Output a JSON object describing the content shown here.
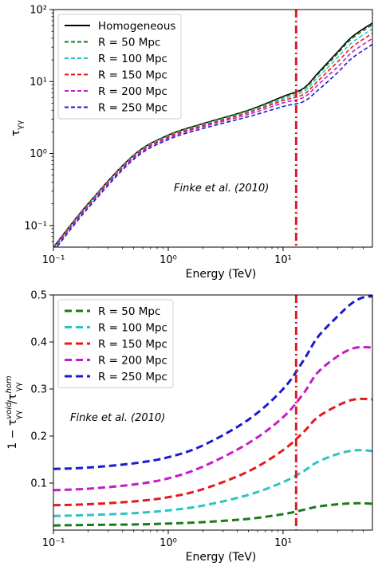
{
  "chart_data": [
    {
      "type": "line",
      "xlabel": "Energy (TeV)",
      "ylabel": "τγγ",
      "xscale": "log",
      "yscale": "log",
      "xlim": [
        0.1,
        60
      ],
      "ylim": [
        0.05,
        100
      ],
      "x_ticks": [
        {
          "value": 0.1,
          "label": "10⁻¹"
        },
        {
          "value": 1,
          "label": "10⁰"
        },
        {
          "value": 10,
          "label": "10¹"
        }
      ],
      "y_ticks": [
        {
          "value": 0.1,
          "label": "10⁻¹"
        },
        {
          "value": 1,
          "label": "10⁰"
        },
        {
          "value": 10,
          "label": "10¹"
        },
        {
          "value": 100,
          "label": "10²"
        }
      ],
      "legend_position": "top-left",
      "annotation": "Finke et al. (2010)",
      "vline": {
        "x": 13,
        "color": "#e31a1c",
        "style": "dash-dot"
      },
      "series": [
        {
          "name": "Homogeneous",
          "color": "#000000",
          "style": "solid",
          "x": [
            0.1,
            0.2,
            0.5,
            1,
            2,
            5,
            10,
            15,
            20,
            30,
            40,
            60
          ],
          "y": [
            0.05,
            0.2,
            0.95,
            1.8,
            2.6,
            4.0,
            6.2,
            8.0,
            13.0,
            26.0,
            42.0,
            65.0
          ]
        },
        {
          "name": "R = 50 Mpc",
          "color": "#1a7a1a",
          "style": "dashed",
          "x": [
            0.1,
            0.2,
            0.5,
            1,
            2,
            5,
            10,
            15,
            20,
            30,
            40,
            60
          ],
          "y": [
            0.0495,
            0.198,
            0.94,
            1.78,
            2.57,
            3.95,
            6.05,
            7.75,
            12.4,
            24.6,
            39.7,
            61.3
          ]
        },
        {
          "name": "R = 100 Mpc",
          "color": "#2ec4c4",
          "style": "dashed",
          "x": [
            0.1,
            0.2,
            0.5,
            1,
            2,
            5,
            10,
            15,
            20,
            30,
            40,
            60
          ],
          "y": [
            0.0485,
            0.194,
            0.92,
            1.74,
            2.5,
            3.82,
            5.75,
            7.2,
            11.3,
            21.7,
            34.9,
            54.0
          ]
        },
        {
          "name": "R = 150 Mpc",
          "color": "#e31a1c",
          "style": "dashed",
          "x": [
            0.1,
            0.2,
            0.5,
            1,
            2,
            5,
            10,
            15,
            20,
            30,
            40,
            60
          ],
          "y": [
            0.0475,
            0.19,
            0.9,
            1.7,
            2.44,
            3.7,
            5.45,
            6.6,
            10.1,
            18.9,
            30.3,
            46.8
          ]
        },
        {
          "name": "R = 200 Mpc",
          "color": "#c51bc5",
          "style": "dashed",
          "x": [
            0.1,
            0.2,
            0.5,
            1,
            2,
            5,
            10,
            15,
            20,
            30,
            40,
            60
          ],
          "y": [
            0.046,
            0.183,
            0.87,
            1.64,
            2.35,
            3.5,
            5.05,
            6.0,
            8.9,
            16.1,
            25.6,
            39.7
          ]
        },
        {
          "name": "R = 250 Mpc",
          "color": "#1a1ad1",
          "style": "dashed",
          "x": [
            0.1,
            0.2,
            0.5,
            1,
            2,
            5,
            10,
            15,
            20,
            30,
            40,
            60
          ],
          "y": [
            0.0435,
            0.174,
            0.83,
            1.56,
            2.22,
            3.25,
            4.5,
            5.25,
            7.5,
            13.4,
            21.2,
            32.8
          ]
        }
      ]
    },
    {
      "type": "line",
      "xlabel": "Energy (TeV)",
      "ylabel": "1 − τγγvoid/τγγhom",
      "xscale": "log",
      "yscale": "linear",
      "xlim": [
        0.1,
        60
      ],
      "ylim": [
        0,
        0.5
      ],
      "x_ticks": [
        {
          "value": 0.1,
          "label": "10⁻¹"
        },
        {
          "value": 1,
          "label": "10⁰"
        },
        {
          "value": 10,
          "label": "10¹"
        }
      ],
      "y_ticks": [
        {
          "value": 0.1,
          "label": "0.1"
        },
        {
          "value": 0.2,
          "label": "0.2"
        },
        {
          "value": 0.3,
          "label": "0.3"
        },
        {
          "value": 0.4,
          "label": "0.4"
        },
        {
          "value": 0.5,
          "label": "0.5"
        }
      ],
      "legend_position": "top-left",
      "annotation": "Finke et al. (2010)",
      "vline": {
        "x": 13,
        "color": "#e31a1c",
        "style": "dash-dot"
      },
      "series": [
        {
          "name": "R = 50 Mpc",
          "color": "#1a7a1a",
          "style": "dashed",
          "x": [
            0.1,
            0.2,
            0.5,
            1,
            2,
            5,
            10,
            15,
            20,
            30,
            40,
            50,
            60
          ],
          "y": [
            0.01,
            0.011,
            0.012,
            0.014,
            0.017,
            0.024,
            0.034,
            0.043,
            0.05,
            0.055,
            0.057,
            0.057,
            0.056
          ]
        },
        {
          "name": "R = 100 Mpc",
          "color": "#2ec4c4",
          "style": "dashed",
          "x": [
            0.1,
            0.2,
            0.5,
            1,
            2,
            5,
            10,
            15,
            20,
            30,
            40,
            50,
            60
          ],
          "y": [
            0.03,
            0.032,
            0.036,
            0.042,
            0.052,
            0.075,
            0.102,
            0.125,
            0.145,
            0.162,
            0.169,
            0.17,
            0.168
          ]
        },
        {
          "name": "R = 150 Mpc",
          "color": "#e31a1c",
          "style": "dashed",
          "x": [
            0.1,
            0.2,
            0.5,
            1,
            2,
            5,
            10,
            15,
            20,
            30,
            40,
            50,
            60
          ],
          "y": [
            0.053,
            0.055,
            0.061,
            0.07,
            0.087,
            0.125,
            0.17,
            0.208,
            0.24,
            0.265,
            0.277,
            0.279,
            0.278
          ]
        },
        {
          "name": "R = 200 Mpc",
          "color": "#c51bc5",
          "style": "dashed",
          "x": [
            0.1,
            0.2,
            0.5,
            1,
            2,
            5,
            10,
            15,
            20,
            30,
            40,
            50,
            60
          ],
          "y": [
            0.085,
            0.088,
            0.097,
            0.11,
            0.135,
            0.185,
            0.24,
            0.29,
            0.335,
            0.37,
            0.386,
            0.389,
            0.388
          ]
        },
        {
          "name": "R = 250 Mpc",
          "color": "#1a1ad1",
          "style": "dashed",
          "x": [
            0.1,
            0.2,
            0.5,
            1,
            2,
            5,
            10,
            15,
            20,
            30,
            40,
            50,
            60
          ],
          "y": [
            0.13,
            0.133,
            0.142,
            0.155,
            0.18,
            0.235,
            0.3,
            0.36,
            0.41,
            0.455,
            0.483,
            0.495,
            0.497
          ]
        }
      ]
    }
  ]
}
